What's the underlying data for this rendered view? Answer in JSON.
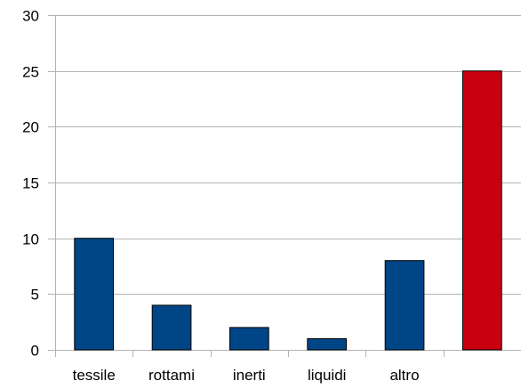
{
  "chart_data": {
    "type": "bar",
    "categories": [
      "tessile",
      "rottami",
      "inerti",
      "liquidi",
      "altro",
      ""
    ],
    "values": [
      10,
      4,
      2,
      1,
      8,
      25
    ],
    "bar_colors": [
      "#004586",
      "#004586",
      "#004586",
      "#004586",
      "#004586",
      "#c9000f"
    ],
    "ylim": [
      0,
      30
    ],
    "yticks": [
      0,
      5,
      10,
      15,
      20,
      25,
      30
    ],
    "grid": true,
    "title": "",
    "xlabel": "",
    "ylabel": "",
    "legend": "none"
  }
}
